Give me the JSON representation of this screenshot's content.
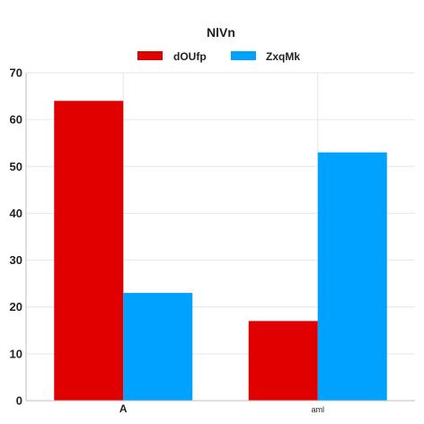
{
  "chart_data": {
    "type": "bar",
    "title": "NlVn",
    "categories": [
      "A",
      "aml"
    ],
    "series": [
      {
        "name": "dOUfp",
        "values": [
          64,
          17
        ],
        "color": "#e00000"
      },
      {
        "name": "ZxqMk",
        "values": [
          23,
          53
        ],
        "color": "#00a2ff"
      }
    ],
    "ylim": [
      0,
      70
    ],
    "yticks": [
      0,
      10,
      20,
      30,
      40,
      50,
      60,
      70
    ],
    "grid": true,
    "legend_position": "top"
  }
}
